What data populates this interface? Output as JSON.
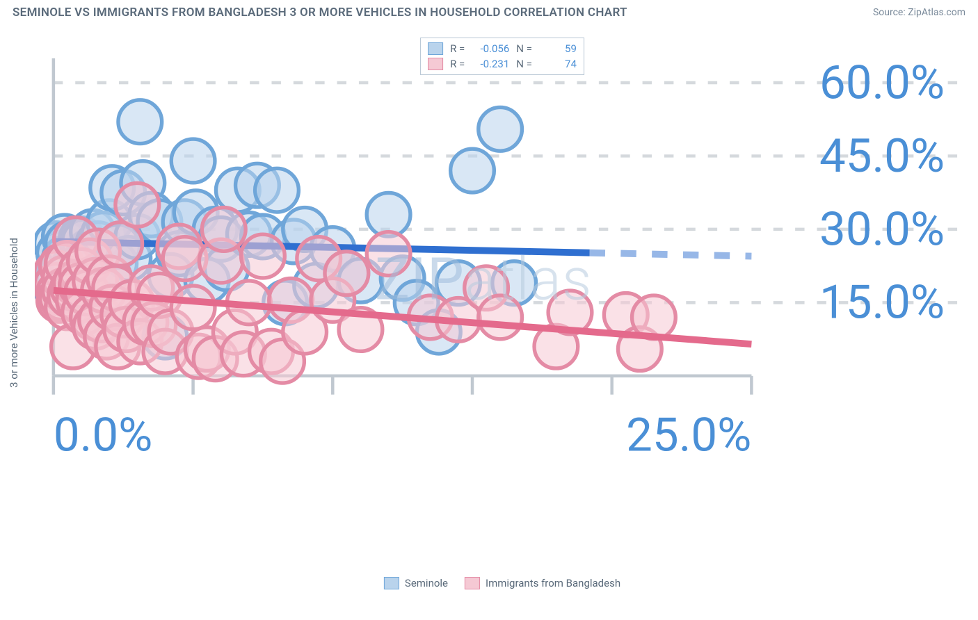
{
  "header": {
    "title": "SEMINOLE VS IMMIGRANTS FROM BANGLADESH 3 OR MORE VEHICLES IN HOUSEHOLD CORRELATION CHART",
    "source": "Source: ZipAtlas.com"
  },
  "watermark": {
    "bold": "ZIP",
    "light": "atlas"
  },
  "ylabel": "3 or more Vehicles in Household",
  "chart": {
    "type": "scatter",
    "background_color": "#ffffff",
    "grid_color": "#d5d9dd",
    "axis_color": "#c0c8d0",
    "xlim": [
      0,
      25
    ],
    "ylim": [
      0,
      65
    ],
    "xtick_step": 5,
    "ytick_step": 15,
    "xtick_labels": [
      "0.0%",
      "",
      "",
      "",
      "",
      "25.0%"
    ],
    "ytick_labels": [
      "",
      "15.0%",
      "30.0%",
      "45.0%",
      "60.0%"
    ],
    "tick_fontsize": 15,
    "tick_color": "#4a8fd6",
    "label_fontsize": 15,
    "label_color": "#5a6a7a",
    "marker_radius": 7,
    "marker_opacity": 0.55,
    "line_width": 2.2,
    "series": [
      {
        "name": "Seminole",
        "color_fill": "#b9d3ec",
        "color_stroke": "#6fa6d9",
        "line_color": "#2f6fd0",
        "R": "-0.056",
        "N": "59",
        "trend": {
          "x1": 0,
          "y1": 27.5,
          "x2": 25,
          "y2": 24.5,
          "solid_to_x": 19.2
        },
        "points": [
          [
            0.1,
            27.0
          ],
          [
            0.1,
            18.0
          ],
          [
            0.2,
            25.0
          ],
          [
            0.2,
            20.5
          ],
          [
            0.4,
            28.5
          ],
          [
            0.4,
            24.0
          ],
          [
            0.5,
            27.0
          ],
          [
            0.7,
            22.0
          ],
          [
            0.8,
            19.0
          ],
          [
            1.0,
            28.0
          ],
          [
            1.1,
            27.5
          ],
          [
            1.2,
            24.0
          ],
          [
            1.3,
            21.0
          ],
          [
            1.3,
            25.5
          ],
          [
            1.4,
            29.5
          ],
          [
            1.5,
            19.5
          ],
          [
            1.6,
            27.0
          ],
          [
            1.8,
            29.0
          ],
          [
            2.0,
            31.5
          ],
          [
            2.1,
            38.5
          ],
          [
            2.2,
            23.0
          ],
          [
            2.3,
            26.5
          ],
          [
            2.5,
            37.5
          ],
          [
            2.7,
            24.0
          ],
          [
            3.0,
            28.5
          ],
          [
            3.1,
            52.0
          ],
          [
            3.2,
            39.5
          ],
          [
            3.5,
            33.0
          ],
          [
            3.8,
            31.5
          ],
          [
            4.0,
            8.0
          ],
          [
            4.2,
            20.5
          ],
          [
            4.5,
            25.0
          ],
          [
            4.7,
            31.5
          ],
          [
            5.0,
            44.0
          ],
          [
            5.1,
            33.5
          ],
          [
            5.5,
            19.5
          ],
          [
            5.8,
            30.0
          ],
          [
            6.0,
            28.0
          ],
          [
            6.2,
            22.0
          ],
          [
            6.6,
            38.0
          ],
          [
            7.0,
            29.0
          ],
          [
            7.3,
            39.0
          ],
          [
            7.5,
            28.5
          ],
          [
            8.0,
            38.0
          ],
          [
            8.3,
            15.0
          ],
          [
            8.6,
            27.5
          ],
          [
            9.0,
            30.0
          ],
          [
            9.4,
            18.5
          ],
          [
            10.0,
            26.0
          ],
          [
            10.5,
            21.0
          ],
          [
            11.0,
            19.5
          ],
          [
            12.0,
            33.0
          ],
          [
            12.5,
            20.0
          ],
          [
            13.0,
            15.0
          ],
          [
            13.8,
            9.0
          ],
          [
            14.5,
            19.0
          ],
          [
            15.0,
            42.0
          ],
          [
            16.0,
            50.5
          ],
          [
            16.5,
            19.0
          ]
        ]
      },
      {
        "name": "Immigrants from Bangladesh",
        "color_fill": "#f5c9d4",
        "color_stroke": "#e48ba5",
        "line_color": "#e46a8c",
        "R": "-0.231",
        "N": "74",
        "trend": {
          "x1": 0,
          "y1": 17.5,
          "x2": 25,
          "y2": 6.5,
          "solid_to_x": 25
        },
        "points": [
          [
            0.1,
            21.0
          ],
          [
            0.1,
            18.5
          ],
          [
            0.2,
            17.0
          ],
          [
            0.2,
            15.5
          ],
          [
            0.3,
            16.0
          ],
          [
            0.3,
            22.5
          ],
          [
            0.4,
            20.0
          ],
          [
            0.4,
            17.5
          ],
          [
            0.5,
            14.0
          ],
          [
            0.5,
            23.0
          ],
          [
            0.6,
            16.5
          ],
          [
            0.7,
            18.0
          ],
          [
            0.7,
            6.0
          ],
          [
            0.8,
            19.0
          ],
          [
            0.8,
            28.0
          ],
          [
            0.9,
            15.5
          ],
          [
            1.0,
            21.5
          ],
          [
            1.0,
            18.5
          ],
          [
            1.1,
            13.0
          ],
          [
            1.2,
            17.0
          ],
          [
            1.3,
            23.5
          ],
          [
            1.4,
            12.0
          ],
          [
            1.5,
            19.5
          ],
          [
            1.5,
            10.0
          ],
          [
            1.6,
            25.5
          ],
          [
            1.7,
            11.5
          ],
          [
            1.8,
            17.5
          ],
          [
            1.9,
            8.0
          ],
          [
            2.0,
            20.0
          ],
          [
            2.1,
            14.0
          ],
          [
            2.2,
            18.0
          ],
          [
            2.3,
            6.0
          ],
          [
            2.4,
            27.0
          ],
          [
            2.5,
            12.5
          ],
          [
            2.6,
            9.5
          ],
          [
            2.8,
            15.0
          ],
          [
            3.0,
            35.0
          ],
          [
            3.1,
            7.0
          ],
          [
            3.3,
            11.0
          ],
          [
            3.5,
            18.0
          ],
          [
            3.6,
            10.5
          ],
          [
            3.8,
            16.5
          ],
          [
            4.0,
            5.0
          ],
          [
            4.2,
            9.0
          ],
          [
            4.5,
            26.5
          ],
          [
            4.7,
            24.0
          ],
          [
            5.0,
            14.0
          ],
          [
            5.2,
            4.0
          ],
          [
            5.5,
            5.5
          ],
          [
            5.8,
            3.5
          ],
          [
            6.0,
            23.5
          ],
          [
            6.1,
            30.0
          ],
          [
            6.5,
            9.0
          ],
          [
            6.8,
            4.5
          ],
          [
            7.0,
            15.0
          ],
          [
            7.5,
            24.5
          ],
          [
            7.8,
            5.0
          ],
          [
            8.2,
            3.0
          ],
          [
            8.5,
            15.5
          ],
          [
            9.0,
            9.0
          ],
          [
            9.5,
            24.0
          ],
          [
            10.0,
            15.5
          ],
          [
            10.5,
            21.0
          ],
          [
            11.0,
            9.5
          ],
          [
            12.0,
            25.0
          ],
          [
            13.5,
            12.0
          ],
          [
            14.5,
            11.5
          ],
          [
            15.5,
            18.0
          ],
          [
            16.0,
            12.0
          ],
          [
            18.0,
            6.0
          ],
          [
            18.5,
            13.0
          ],
          [
            20.5,
            12.5
          ],
          [
            21.0,
            5.5
          ],
          [
            21.5,
            12.0
          ]
        ]
      }
    ]
  },
  "legend_top": {
    "rows": [
      {
        "swatch_fill": "#b9d3ec",
        "swatch_stroke": "#6fa6d9",
        "R_label": "R =",
        "R": "-0.056",
        "N_label": "N =",
        "N": "59"
      },
      {
        "swatch_fill": "#f5c9d4",
        "swatch_stroke": "#e48ba5",
        "R_label": "R =",
        "R": "-0.231",
        "N_label": "N =",
        "N": "74"
      }
    ]
  },
  "legend_bottom": {
    "items": [
      {
        "swatch_fill": "#b9d3ec",
        "swatch_stroke": "#6fa6d9",
        "label": "Seminole"
      },
      {
        "swatch_fill": "#f5c9d4",
        "swatch_stroke": "#e48ba5",
        "label": "Immigrants from Bangladesh"
      }
    ]
  }
}
